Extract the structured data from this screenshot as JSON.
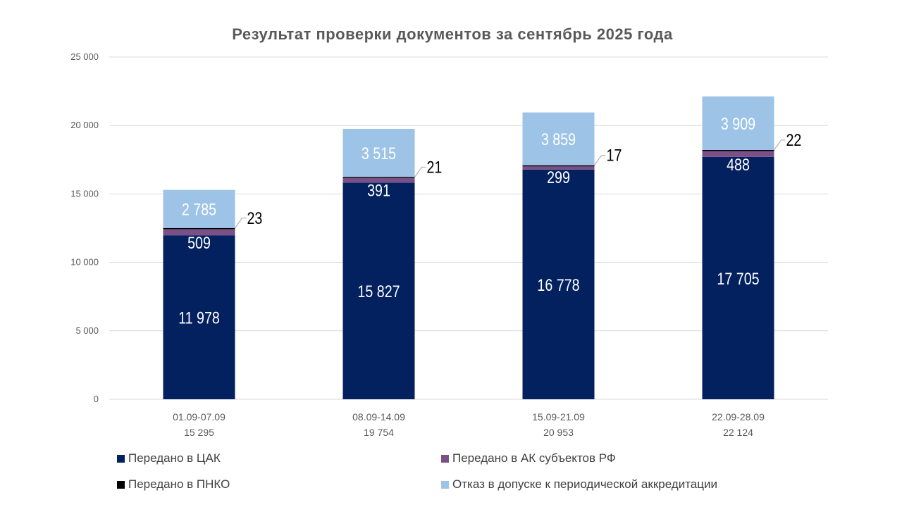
{
  "chart_data": {
    "type": "bar",
    "stacked": true,
    "title": "Результат проверки документов за сентябрь 2025 года",
    "xlabel": "",
    "ylabel": "",
    "ylim": [
      0,
      25000
    ],
    "yticks": [
      0,
      5000,
      10000,
      15000,
      20000,
      25000
    ],
    "ytick_labels": [
      "0",
      "5 000",
      "10 000",
      "15 000",
      "20 000",
      "25 000"
    ],
    "grid": true,
    "legend_position": "bottom",
    "categories": [
      "01.09-07.09",
      "08.09-14.09",
      "15.09-21.09",
      "22.09-28.09"
    ],
    "category_totals": [
      "15 295",
      "19 754",
      "20 953",
      "22 124"
    ],
    "series": [
      {
        "name": "Передано в ЦАК",
        "color": "#03205F",
        "values": [
          11978,
          15827,
          16778,
          17705
        ],
        "labels": [
          "11 978",
          "15 827",
          "16 778",
          "17 705"
        ]
      },
      {
        "name": "Передано в АК субъектов РФ",
        "color": "#7A5087",
        "values": [
          509,
          391,
          299,
          488
        ],
        "labels": [
          "509",
          "391",
          "299",
          "488"
        ]
      },
      {
        "name": "Передано в ПНКО",
        "color": "#000000",
        "values": [
          23,
          21,
          17,
          22
        ],
        "labels": [
          "23",
          "21",
          "17",
          "22"
        ]
      },
      {
        "name": "Отказ в допуске к периодической аккредитации",
        "color": "#9DC3E6",
        "values": [
          2785,
          3515,
          3859,
          3909
        ],
        "labels": [
          "2 785",
          "3 515",
          "3 859",
          "3 909"
        ]
      }
    ]
  }
}
